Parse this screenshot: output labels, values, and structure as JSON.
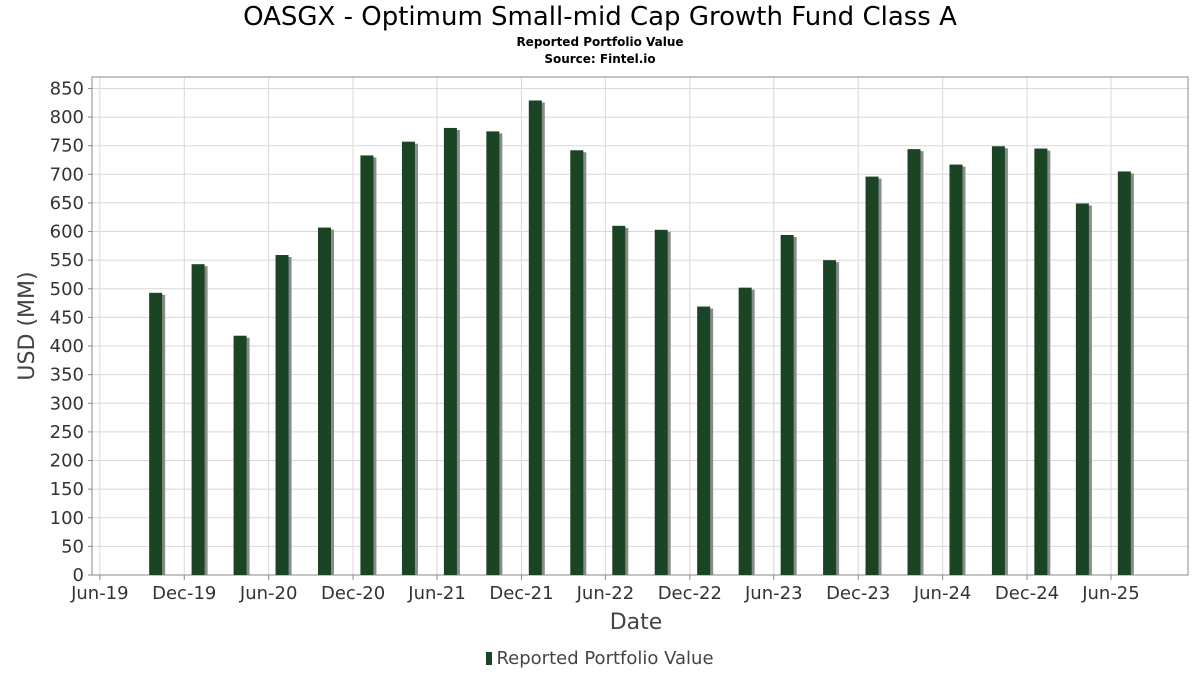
{
  "header": {
    "title": "OASGX - Optimum Small-mid Cap Growth Fund Class A",
    "subtitle": "Reported Portfolio Value",
    "source": "Source: Fintel.io"
  },
  "legend": {
    "label": "Reported Portfolio Value",
    "color": "#1a4424"
  },
  "colors": {
    "bar": "#1a4424",
    "bar_shadow": "#8a8a8a",
    "grid": "#d8d8d8",
    "plot_border": "#888888"
  },
  "chart_data": {
    "type": "bar",
    "title": "OASGX - Optimum Small-mid Cap Growth Fund Class A",
    "subtitle": "Reported Portfolio Value",
    "xlabel": "Date",
    "ylabel": "USD (MM)",
    "ylim": [
      0,
      870
    ],
    "yticks": [
      0,
      50,
      100,
      150,
      200,
      250,
      300,
      350,
      400,
      450,
      500,
      550,
      600,
      650,
      700,
      750,
      800,
      850
    ],
    "xlim": [
      "2019-05-15",
      "2025-11-15"
    ],
    "xticks": [
      {
        "date": "2019-06-01",
        "label": "Jun-19"
      },
      {
        "date": "2019-12-01",
        "label": "Dec-19"
      },
      {
        "date": "2020-06-01",
        "label": "Jun-20"
      },
      {
        "date": "2020-12-01",
        "label": "Dec-20"
      },
      {
        "date": "2021-06-01",
        "label": "Jun-21"
      },
      {
        "date": "2021-12-01",
        "label": "Dec-21"
      },
      {
        "date": "2022-06-01",
        "label": "Jun-22"
      },
      {
        "date": "2022-12-01",
        "label": "Dec-22"
      },
      {
        "date": "2023-06-01",
        "label": "Jun-23"
      },
      {
        "date": "2023-12-01",
        "label": "Dec-23"
      },
      {
        "date": "2024-06-01",
        "label": "Jun-24"
      },
      {
        "date": "2024-12-01",
        "label": "Dec-24"
      },
      {
        "date": "2025-06-01",
        "label": "Jun-25"
      }
    ],
    "grid": true,
    "legend_position": "bottom",
    "series": [
      {
        "name": "Reported Portfolio Value",
        "points": [
          {
            "date": "2019-09-30",
            "value": 493
          },
          {
            "date": "2019-12-31",
            "value": 543
          },
          {
            "date": "2020-03-31",
            "value": 418
          },
          {
            "date": "2020-06-30",
            "value": 559
          },
          {
            "date": "2020-09-30",
            "value": 607
          },
          {
            "date": "2020-12-31",
            "value": 733
          },
          {
            "date": "2021-03-31",
            "value": 757
          },
          {
            "date": "2021-06-30",
            "value": 781
          },
          {
            "date": "2021-09-30",
            "value": 775
          },
          {
            "date": "2021-12-31",
            "value": 829
          },
          {
            "date": "2022-03-31",
            "value": 742
          },
          {
            "date": "2022-06-30",
            "value": 610
          },
          {
            "date": "2022-09-30",
            "value": 603
          },
          {
            "date": "2022-12-31",
            "value": 469
          },
          {
            "date": "2023-03-31",
            "value": 502
          },
          {
            "date": "2023-06-30",
            "value": 594
          },
          {
            "date": "2023-09-30",
            "value": 550
          },
          {
            "date": "2023-12-31",
            "value": 696
          },
          {
            "date": "2024-03-31",
            "value": 744
          },
          {
            "date": "2024-06-30",
            "value": 717
          },
          {
            "date": "2024-09-30",
            "value": 749
          },
          {
            "date": "2024-12-31",
            "value": 745
          },
          {
            "date": "2025-03-31",
            "value": 649
          },
          {
            "date": "2025-06-30",
            "value": 705
          }
        ]
      }
    ]
  }
}
